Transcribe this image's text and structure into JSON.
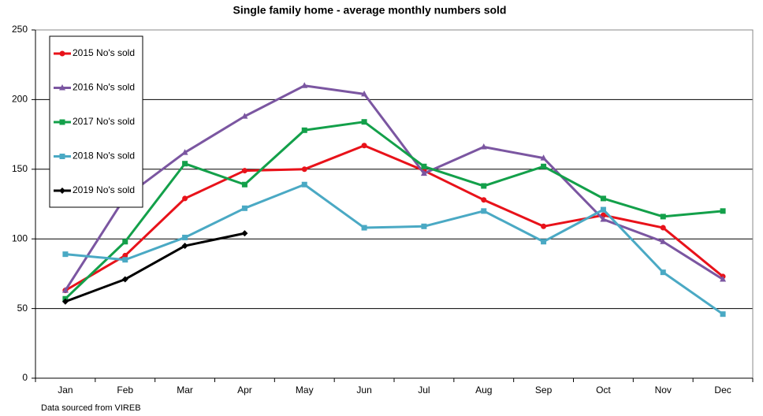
{
  "chart_data": {
    "type": "line",
    "title": "Single family home - average monthly numbers sold",
    "note": "Data sourced from VIREB",
    "categories": [
      "Jan",
      "Feb",
      "Mar",
      "Apr",
      "May",
      "Jun",
      "Jul",
      "Aug",
      "Sep",
      "Oct",
      "Nov",
      "Dec"
    ],
    "ylim": [
      0,
      250
    ],
    "yticks": [
      0,
      50,
      100,
      150,
      200,
      250
    ],
    "grid": true,
    "legend": "upper left",
    "series": [
      {
        "name": "2015 No's sold",
        "color": "#e8121a",
        "marker": "circle",
        "values": [
          63,
          88,
          129,
          149,
          150,
          167,
          149,
          128,
          109,
          117,
          108,
          73
        ]
      },
      {
        "name": "2016 No's sold",
        "color": "#7b56a1",
        "marker": "triangle",
        "values": [
          63,
          130,
          162,
          188,
          210,
          204,
          147,
          166,
          158,
          114,
          98,
          71
        ]
      },
      {
        "name": "2017 No's sold",
        "color": "#13a04a",
        "marker": "square",
        "values": [
          57,
          98,
          154,
          139,
          178,
          184,
          152,
          138,
          152,
          129,
          116,
          120
        ]
      },
      {
        "name": "2018 No's sold",
        "color": "#4aa9c4",
        "marker": "square",
        "values": [
          89,
          85,
          101,
          122,
          139,
          108,
          109,
          120,
          98,
          121,
          76,
          46
        ]
      },
      {
        "name": "2019 No's sold",
        "color": "#000000",
        "marker": "diamond",
        "values": [
          55,
          71,
          95,
          104,
          null,
          null,
          null,
          null,
          null,
          null,
          null,
          null
        ]
      }
    ]
  }
}
